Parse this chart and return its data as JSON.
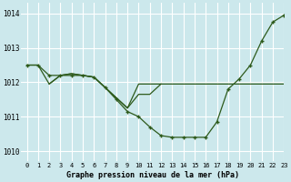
{
  "title": "Graphe pression niveau de la mer (hPa)",
  "background_color": "#cce8ec",
  "grid_color": "#ffffff",
  "line_color": "#2d5a1b",
  "xlim": [
    -0.5,
    23
  ],
  "ylim": [
    1009.7,
    1014.3
  ],
  "yticks": [
    1010,
    1011,
    1012,
    1013,
    1014
  ],
  "xticks": [
    0,
    1,
    2,
    3,
    4,
    5,
    6,
    7,
    8,
    9,
    10,
    11,
    12,
    13,
    14,
    15,
    16,
    17,
    18,
    19,
    20,
    21,
    22,
    23
  ],
  "series_main": {
    "x": [
      0,
      1,
      2,
      3,
      4,
      5,
      6,
      7,
      8,
      9,
      10,
      11,
      12,
      13,
      14,
      15,
      16,
      17,
      18,
      19,
      20,
      21,
      22,
      23
    ],
    "y": [
      1012.5,
      1012.5,
      1012.2,
      1012.2,
      1012.2,
      1012.2,
      1012.15,
      1011.85,
      1011.5,
      1011.15,
      1011.0,
      1010.7,
      1010.45,
      1010.4,
      1010.4,
      1010.4,
      1010.4,
      1010.85,
      1011.8,
      1012.1,
      1012.5,
      1013.2,
      1013.75,
      1013.95
    ]
  },
  "series_flat_upper": {
    "x": [
      0,
      1,
      2,
      3,
      4,
      5,
      6,
      7,
      8,
      9,
      10,
      11,
      12,
      13,
      14,
      15,
      16,
      17,
      18,
      19,
      20,
      21,
      22,
      23
    ],
    "y": [
      1012.5,
      1012.5,
      1011.95,
      1012.2,
      1012.25,
      1012.2,
      1012.15,
      1011.85,
      1011.55,
      1011.25,
      1011.95,
      1011.95,
      1011.95,
      1011.95,
      1011.95,
      1011.95,
      1011.95,
      1011.95,
      1011.95,
      1011.95,
      1011.95,
      1011.95,
      1011.95,
      1011.95
    ]
  },
  "series_descend": {
    "x": [
      2,
      3,
      4,
      5,
      6,
      7,
      8,
      9,
      10,
      11,
      12
    ],
    "y": [
      1011.95,
      1012.2,
      1012.25,
      1012.2,
      1012.15,
      1011.85,
      1011.55,
      1011.25,
      1011.65,
      1011.65,
      1011.95
    ]
  }
}
